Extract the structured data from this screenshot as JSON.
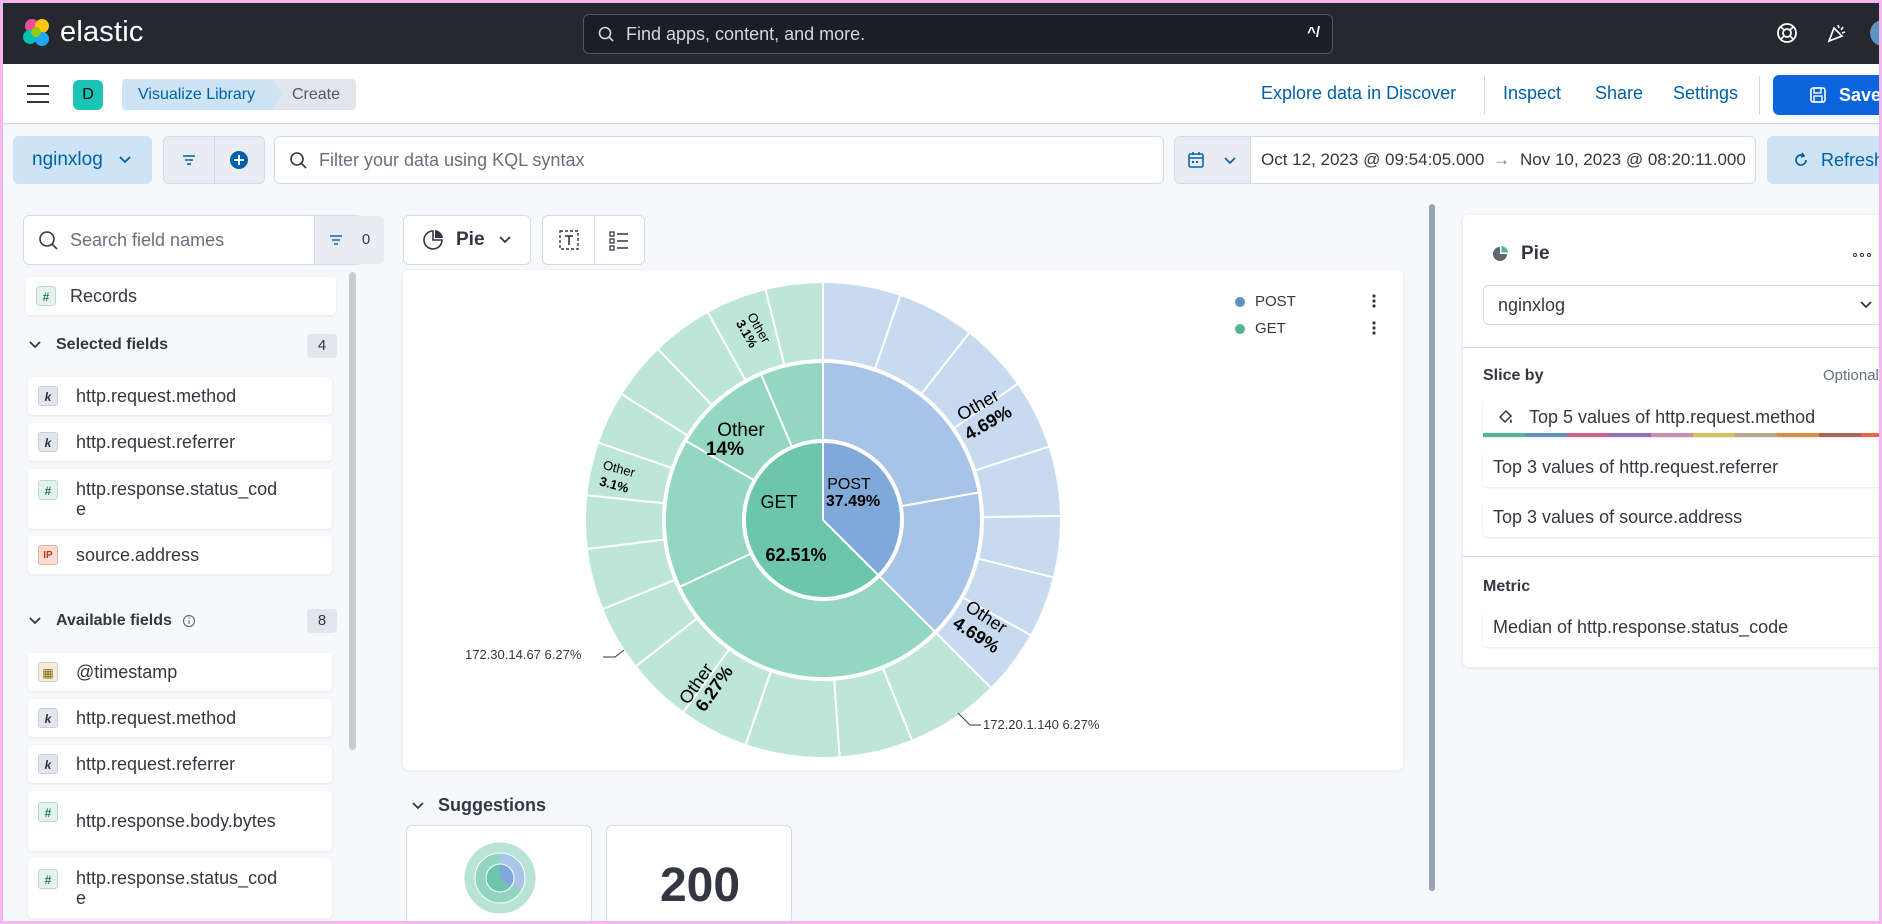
{
  "header": {
    "brand": "elastic",
    "search_placeholder": "Find apps, content, and more.",
    "search_shortcut": "^/"
  },
  "nav": {
    "space_initial": "D",
    "breadcrumbs": [
      "Visualize Library",
      "Create"
    ],
    "links": {
      "explore": "Explore data in Discover",
      "inspect": "Inspect",
      "share": "Share",
      "settings": "Settings"
    },
    "save_label": "Save"
  },
  "query": {
    "data_view": "nginxlog",
    "kql_placeholder": "Filter your data using KQL syntax",
    "date_start": "Oct 12, 2023 @ 09:54:05.000",
    "date_arrow": "→",
    "date_end": "Nov 10, 2023 @ 08:20:11.000",
    "refresh_label": "Refresh"
  },
  "fields": {
    "search_placeholder": "Search field names",
    "filter_count": "0",
    "records_label": "Records",
    "selected": {
      "title": "Selected fields",
      "count": "4",
      "items": [
        {
          "name": "http.request.method",
          "type": "k"
        },
        {
          "name": "http.request.referrer",
          "type": "k"
        },
        {
          "name": "http.response.status_code",
          "type": "#"
        },
        {
          "name": "source.address",
          "type": "IP"
        }
      ]
    },
    "available": {
      "title": "Available fields",
      "count": "8",
      "items": [
        {
          "name": "@timestamp",
          "type": "date"
        },
        {
          "name": "http.request.method",
          "type": "k"
        },
        {
          "name": "http.request.referrer",
          "type": "k"
        },
        {
          "name": "http.response.body.bytes",
          "type": "#"
        },
        {
          "name": "http.response.status_code",
          "type": "#"
        }
      ]
    }
  },
  "workspace": {
    "chart_type": "Pie",
    "legend": [
      {
        "label": "POST",
        "color": "#6092c0"
      },
      {
        "label": "GET",
        "color": "#54b399"
      }
    ],
    "leader_labels": {
      "left": "172.30.14.67  6.27%",
      "right": "172.20.1.140  6.27%"
    },
    "suggestions_title": "Suggestions",
    "suggestion_metric": "200"
  },
  "chart_data": {
    "type": "pie",
    "rings": [
      {
        "level": "http.request.method",
        "slices": [
          {
            "label": "POST",
            "percent": 37.49
          },
          {
            "label": "GET",
            "percent": 62.51
          }
        ]
      }
    ],
    "slice_labels": [
      {
        "text": "POST",
        "value": "37.49%"
      },
      {
        "text": "GET",
        "value": "62.51%"
      },
      {
        "text": "Other",
        "value": "14%"
      },
      {
        "text": "Other",
        "value": "4.69%"
      },
      {
        "text": "Other",
        "value": "4.69%"
      },
      {
        "text": "Other",
        "value": "6.27%"
      },
      {
        "text": "Other",
        "value": "3.1%"
      },
      {
        "text": "Other",
        "value": "3.1%"
      }
    ]
  },
  "config": {
    "title": "Pie",
    "data_view": "nginxlog",
    "slice_by_label": "Slice by",
    "optional_label": "Optional",
    "slice_by": [
      "Top 5 values of http.request.method",
      "Top 3 values of http.request.referrer",
      "Top 3 values of source.address"
    ],
    "metric_label": "Metric",
    "metric": "Median of http.response.status_code"
  },
  "colors": {
    "header_bg": "#25282f",
    "accent": "#0b64dd",
    "post": "#6092c0",
    "get": "#54b399"
  }
}
